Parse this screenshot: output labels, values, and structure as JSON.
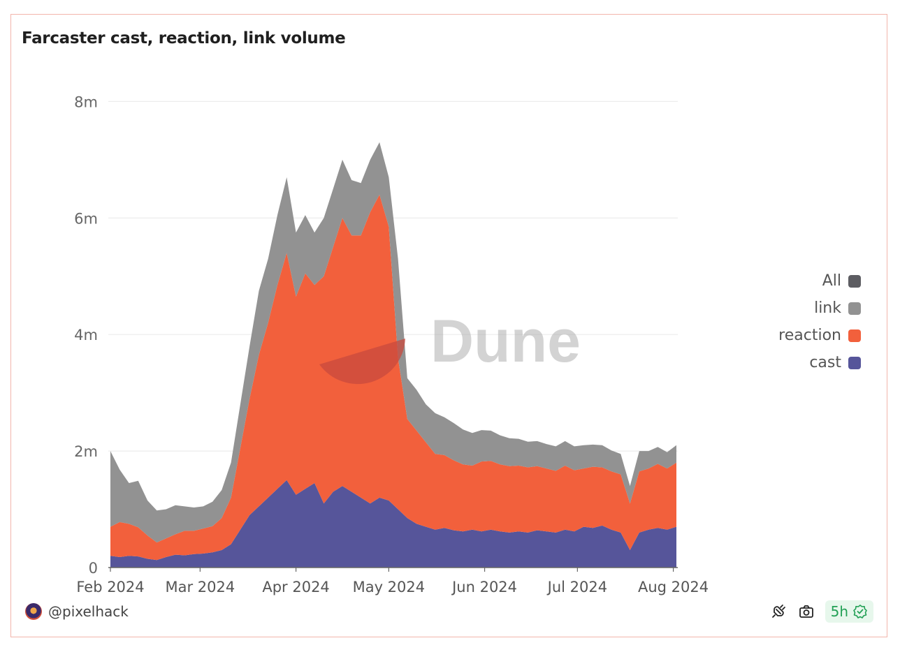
{
  "title": "Farcaster cast, reaction, link volume",
  "author": "@pixelhack",
  "freshness": "5h",
  "watermark": "Dune",
  "icons": {
    "avatar": "avatar-icon",
    "query": "plug-icon",
    "snapshot": "camera-icon",
    "fresh": "check-badge-icon"
  },
  "legend": [
    {
      "label": "All",
      "color": "#5d5d62"
    },
    {
      "label": "link",
      "color": "#929292"
    },
    {
      "label": "reaction",
      "color": "#f2603c"
    },
    {
      "label": "cast",
      "color": "#56559a"
    }
  ],
  "chart_data": {
    "type": "area",
    "stacked": true,
    "x_ticks": [
      "Feb 2024",
      "Mar 2024",
      "Apr 2024",
      "May 2024",
      "Jun 2024",
      "Jul 2024",
      "Aug 2024"
    ],
    "y_ticks": [
      "0",
      "2m",
      "4m",
      "6m",
      "8m"
    ],
    "ylim": [
      0,
      8400000
    ],
    "grid": true,
    "legend_position": "right",
    "x": [
      "2024-02-01",
      "2024-02-04",
      "2024-02-07",
      "2024-02-10",
      "2024-02-13",
      "2024-02-16",
      "2024-02-19",
      "2024-02-22",
      "2024-02-25",
      "2024-02-28",
      "2024-03-02",
      "2024-03-05",
      "2024-03-08",
      "2024-03-11",
      "2024-03-14",
      "2024-03-17",
      "2024-03-20",
      "2024-03-23",
      "2024-03-26",
      "2024-03-29",
      "2024-04-01",
      "2024-04-04",
      "2024-04-07",
      "2024-04-10",
      "2024-04-13",
      "2024-04-16",
      "2024-04-19",
      "2024-04-22",
      "2024-04-25",
      "2024-04-28",
      "2024-05-01",
      "2024-05-04",
      "2024-05-07",
      "2024-05-10",
      "2024-05-13",
      "2024-05-16",
      "2024-05-19",
      "2024-05-22",
      "2024-05-25",
      "2024-05-28",
      "2024-05-31",
      "2024-06-03",
      "2024-06-06",
      "2024-06-09",
      "2024-06-12",
      "2024-06-15",
      "2024-06-18",
      "2024-06-21",
      "2024-06-24",
      "2024-06-27",
      "2024-06-30",
      "2024-07-03",
      "2024-07-06",
      "2024-07-09",
      "2024-07-12",
      "2024-07-15",
      "2024-07-18",
      "2024-07-21",
      "2024-07-24",
      "2024-07-27",
      "2024-07-30",
      "2024-08-02"
    ],
    "series": [
      {
        "name": "cast",
        "values": [
          200000,
          180000,
          200000,
          190000,
          150000,
          130000,
          180000,
          220000,
          210000,
          230000,
          240000,
          260000,
          300000,
          400000,
          650000,
          900000,
          1050000,
          1200000,
          1350000,
          1500000,
          1250000,
          1350000,
          1450000,
          1100000,
          1300000,
          1400000,
          1300000,
          1200000,
          1100000,
          1200000,
          1150000,
          1000000,
          850000,
          750000,
          700000,
          650000,
          680000,
          640000,
          620000,
          650000,
          620000,
          650000,
          620000,
          600000,
          620000,
          600000,
          640000,
          620000,
          600000,
          650000,
          620000,
          700000,
          680000,
          720000,
          650000,
          600000,
          300000,
          600000,
          650000,
          680000,
          650000,
          700000
        ]
      },
      {
        "name": "reaction",
        "values": [
          500000,
          600000,
          550000,
          500000,
          400000,
          300000,
          320000,
          350000,
          420000,
          400000,
          430000,
          450000,
          550000,
          800000,
          1400000,
          2000000,
          2600000,
          3000000,
          3500000,
          3900000,
          3400000,
          3700000,
          3400000,
          3900000,
          4200000,
          4600000,
          4400000,
          4500000,
          5000000,
          5200000,
          4700000,
          2600000,
          1700000,
          1600000,
          1450000,
          1300000,
          1250000,
          1200000,
          1150000,
          1100000,
          1200000,
          1180000,
          1150000,
          1140000,
          1130000,
          1120000,
          1100000,
          1080000,
          1060000,
          1100000,
          1050000,
          1000000,
          1050000,
          1000000,
          1000000,
          1000000,
          800000,
          1050000,
          1050000,
          1100000,
          1050000,
          1100000
        ]
      },
      {
        "name": "link",
        "values": [
          1300000,
          900000,
          700000,
          800000,
          600000,
          550000,
          500000,
          500000,
          420000,
          400000,
          380000,
          420000,
          480000,
          600000,
          750000,
          900000,
          1100000,
          1100000,
          1200000,
          1300000,
          1100000,
          1000000,
          900000,
          1000000,
          1000000,
          1000000,
          950000,
          900000,
          900000,
          900000,
          850000,
          1700000,
          700000,
          700000,
          650000,
          700000,
          650000,
          640000,
          600000,
          560000,
          540000,
          520000,
          500000,
          480000,
          460000,
          440000,
          430000,
          420000,
          420000,
          420000,
          410000,
          400000,
          380000,
          380000,
          360000,
          350000,
          300000,
          350000,
          300000,
          290000,
          280000,
          300000
        ]
      }
    ]
  }
}
